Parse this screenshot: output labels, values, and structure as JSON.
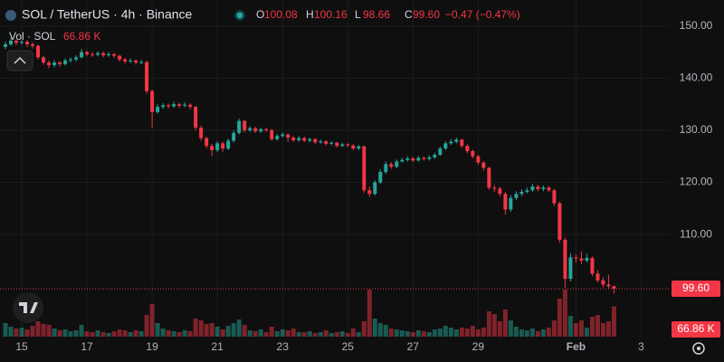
{
  "header": {
    "title": "SOL / TetherUS · 4h · Binance",
    "ohlc": [
      {
        "label": "O",
        "value": "100.08"
      },
      {
        "label": "H",
        "value": "100.16"
      },
      {
        "label": "L",
        "value": "98.66"
      },
      {
        "label": "C",
        "value": "99.60"
      }
    ],
    "change": "−0.47 (−0.47%)",
    "volume_title": "Vol · SOL",
    "volume_last": "66.86 K"
  },
  "chart_data": {
    "type": "candlestick",
    "x": [
      -12,
      -8,
      -4,
      0,
      4,
      8,
      12,
      16,
      20,
      24,
      28,
      32,
      36,
      40,
      44,
      48,
      52,
      56,
      60,
      64,
      68,
      72,
      76,
      80,
      84,
      88,
      92,
      96,
      100,
      104,
      108,
      112,
      116,
      120,
      124,
      128,
      132,
      136,
      140,
      144,
      148,
      152,
      156,
      160,
      164,
      168,
      172,
      176,
      180,
      184,
      188,
      192,
      196,
      200,
      204,
      208,
      212,
      216,
      220,
      224,
      228,
      232,
      236,
      240,
      244,
      248,
      252,
      256,
      260,
      264,
      268,
      272,
      276,
      280,
      284,
      288,
      292,
      296,
      300,
      304,
      308,
      312,
      316,
      320,
      324,
      328,
      332,
      336,
      340,
      344,
      348,
      352,
      356,
      360,
      364,
      368,
      372,
      376,
      380,
      384,
      388,
      392,
      396,
      400,
      404,
      408,
      412,
      416,
      420,
      424,
      428,
      432,
      436
    ],
    "open": [
      146,
      146.5,
      147.2,
      146.8,
      147,
      146.5,
      146.2,
      144,
      143,
      142.5,
      143,
      142.7,
      143.4,
      143.6,
      144,
      145,
      144.6,
      144.5,
      144.8,
      144.4,
      144.6,
      144.3,
      143.6,
      143.2,
      143.4,
      143,
      143.1,
      137.5,
      133.5,
      134.5,
      134.8,
      134.6,
      135,
      134.7,
      134.9,
      134.5,
      130.5,
      128.5,
      127,
      126.2,
      127.5,
      126.5,
      128,
      129.5,
      131.8,
      130,
      130.4,
      129.8,
      130.2,
      130,
      128.3,
      128.9,
      129.2,
      128.6,
      128.1,
      128.5,
      128,
      128.3,
      127.7,
      127.9,
      127.4,
      127.6,
      127,
      127.3,
      127.1,
      126.5,
      126.9,
      118.5,
      117.8,
      120,
      122,
      123.5,
      123,
      124,
      124.3,
      124.6,
      124.2,
      124.7,
      124.5,
      124.8,
      125.3,
      126.5,
      127.5,
      127.8,
      128.2,
      127,
      126,
      125,
      123.8,
      122.8,
      119,
      118.8,
      117.8,
      114.8,
      117,
      117.8,
      118.2,
      118.5,
      119.2,
      118.7,
      119,
      118.5,
      116,
      109,
      101.5,
      105.6,
      105.4,
      105,
      105.5,
      102.5,
      101.2,
      100.4,
      100.08
    ],
    "high": [
      147,
      147.8,
      147.5,
      147.4,
      147.3,
      146.9,
      146.4,
      144.3,
      143.4,
      143.5,
      143.3,
      143.8,
      144,
      144.4,
      145.6,
      145.3,
      145,
      145.2,
      145.1,
      145,
      144.8,
      144.5,
      143.9,
      143.8,
      143.6,
      143.5,
      143.3,
      137.8,
      135,
      135.2,
      135.1,
      135.5,
      135.3,
      135.4,
      135.2,
      134.7,
      130.9,
      128.8,
      127.4,
      127.9,
      127.8,
      128.4,
      130,
      132.2,
      132,
      130.8,
      130.7,
      130.5,
      130.5,
      130.3,
      129.3,
      129.6,
      129.4,
      128.9,
      128.9,
      128.8,
      128.6,
      128.5,
      128.2,
      128.1,
      127.9,
      127.8,
      127.6,
      127.5,
      127.3,
      127.2,
      127.1,
      119.2,
      120.4,
      122.5,
      124,
      123.9,
      124.4,
      124.7,
      125,
      124.9,
      125.1,
      125,
      125.2,
      125.7,
      126.9,
      127.9,
      128.3,
      128.6,
      128.4,
      127.3,
      126.3,
      125.3,
      124.1,
      123,
      119.5,
      119.2,
      118.1,
      117.6,
      118.3,
      118.7,
      119,
      119.7,
      119.5,
      119.4,
      119.3,
      118.8,
      116.3,
      109.4,
      106.4,
      106.2,
      106.8,
      106.3,
      105.8,
      103.2,
      101.8,
      102.3,
      100.16
    ],
    "low": [
      145.6,
      146.2,
      146.3,
      146.4,
      146,
      145.7,
      143.6,
      142.6,
      141.9,
      142.1,
      142.2,
      142.4,
      143,
      143.2,
      143.8,
      144.2,
      144.1,
      144.2,
      144,
      144.1,
      143.9,
      143.2,
      142.8,
      142.9,
      142.6,
      142.7,
      137,
      130.5,
      133.2,
      134.1,
      134.2,
      134.3,
      134.3,
      134.4,
      134,
      130,
      128,
      126.5,
      125,
      125.8,
      125.9,
      126.2,
      127.6,
      129.2,
      129.6,
      129.7,
      129.5,
      129.5,
      129.7,
      128,
      128,
      128.6,
      127.8,
      127.7,
      127.8,
      127.7,
      127.7,
      127.4,
      127.4,
      127.1,
      127.1,
      126.7,
      126.8,
      126.8,
      126.2,
      126.2,
      118,
      117.2,
      117.5,
      119.7,
      121.6,
      122.6,
      122.7,
      123.8,
      124,
      123.9,
      124,
      124.2,
      124.2,
      124.5,
      125.1,
      126.2,
      127.2,
      127.5,
      126.6,
      125.6,
      124.6,
      123.4,
      122.3,
      118.6,
      118.2,
      117.3,
      113.8,
      114.4,
      116.6,
      117.4,
      117.9,
      118.2,
      118.3,
      118.3,
      118.1,
      115.5,
      108.4,
      99.8,
      101,
      104.6,
      104.3,
      104.6,
      102,
      100.8,
      99.9,
      99.5,
      98.66
    ],
    "close": [
      146.5,
      147.2,
      146.8,
      147,
      146.5,
      146.2,
      144,
      143,
      142.5,
      143,
      142.7,
      143.4,
      143.6,
      144,
      145,
      144.6,
      144.5,
      144.8,
      144.4,
      144.6,
      144.3,
      143.6,
      143.2,
      143.4,
      143,
      143.1,
      137.5,
      133.5,
      134.5,
      134.8,
      134.6,
      135,
      134.7,
      134.9,
      134.5,
      130.5,
      128.5,
      127,
      126.2,
      127.5,
      126.5,
      128,
      129.5,
      131.8,
      130,
      130.4,
      129.8,
      130.2,
      130,
      128.3,
      128.9,
      129.2,
      128.6,
      128.1,
      128.5,
      128,
      128.3,
      127.7,
      127.9,
      127.4,
      127.6,
      127,
      127.3,
      127.1,
      126.5,
      126.9,
      118.5,
      117.8,
      120,
      122,
      123.5,
      123,
      124,
      124.3,
      124.6,
      124.2,
      124.7,
      124.5,
      124.8,
      125.3,
      126.5,
      127.5,
      127.8,
      128.2,
      127,
      126,
      125,
      123.8,
      122.8,
      119,
      118.8,
      117.8,
      114.8,
      117,
      117.8,
      118.2,
      118.5,
      119.2,
      118.7,
      119,
      118.5,
      116,
      109,
      101.5,
      105.6,
      105.4,
      105,
      105.5,
      102.5,
      101.2,
      100.4,
      100.07,
      99.6
    ],
    "volume": [
      30,
      22,
      18,
      20,
      16,
      24,
      34,
      28,
      26,
      18,
      14,
      16,
      12,
      14,
      26,
      12,
      10,
      14,
      10,
      8,
      12,
      16,
      14,
      10,
      14,
      12,
      48,
      72,
      30,
      18,
      14,
      12,
      10,
      14,
      12,
      40,
      36,
      28,
      30,
      22,
      16,
      24,
      30,
      38,
      26,
      14,
      12,
      16,
      10,
      22,
      12,
      16,
      14,
      18,
      10,
      10,
      12,
      8,
      10,
      14,
      8,
      10,
      12,
      8,
      18,
      10,
      34,
      104,
      40,
      30,
      26,
      18,
      16,
      14,
      12,
      10,
      14,
      12,
      10,
      16,
      18,
      24,
      20,
      16,
      20,
      18,
      24,
      16,
      20,
      56,
      50,
      34,
      60,
      36,
      22,
      16,
      14,
      18,
      12,
      16,
      20,
      36,
      84,
      104,
      46,
      30,
      36,
      20,
      44,
      48,
      30,
      34,
      66.86
    ],
    "xlim": [
      -16,
      477
    ],
    "xticks": [
      {
        "value": 0,
        "label": "15"
      },
      {
        "value": 48,
        "label": "17"
      },
      {
        "value": 96,
        "label": "19"
      },
      {
        "value": 144,
        "label": "21"
      },
      {
        "value": 192,
        "label": "23"
      },
      {
        "value": 240,
        "label": "25"
      },
      {
        "value": 288,
        "label": "27"
      },
      {
        "value": 336,
        "label": "29"
      },
      {
        "value": 408,
        "label": "Feb"
      },
      {
        "value": 456,
        "label": "3"
      }
    ],
    "ylim": [
      90.4,
      155
    ],
    "yticks": [
      {
        "value": 110,
        "label": "110.00"
      },
      {
        "value": 120,
        "label": "120.00"
      },
      {
        "value": 130,
        "label": "130.00"
      },
      {
        "value": 140,
        "label": "140.00"
      },
      {
        "value": 150,
        "label": "150.00"
      }
    ],
    "volume_lim": [
      0,
      200
    ],
    "grid": true,
    "up_color": "#26a69a",
    "down_color": "#f23645"
  }
}
